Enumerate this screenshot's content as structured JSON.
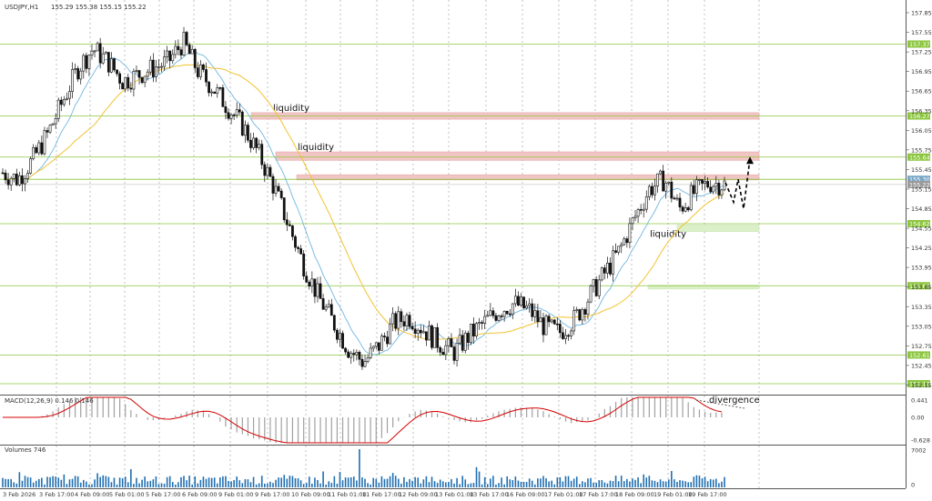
{
  "header": {
    "symbol": "USDJPY,H1",
    "ohlc": "155.29 155.38 155.15 155.22"
  },
  "chart_data": {
    "type": "candlestick",
    "price_ticks": [
      "157.85",
      "157.55",
      "157.25",
      "156.95",
      "156.65",
      "156.35",
      "156.05",
      "155.75",
      "155.45",
      "155.15",
      "154.85",
      "154.55",
      "154.25",
      "153.95",
      "153.65",
      "153.35",
      "153.05",
      "152.75",
      "152.45",
      "152.15"
    ],
    "levels": [
      {
        "label": "157.37",
        "price": 157.37
      },
      {
        "label": "156.27",
        "price": 156.27
      },
      {
        "label": "155.64",
        "price": 155.64
      },
      {
        "label": "155.30",
        "price": 155.3
      },
      {
        "label": "155.22",
        "price": 155.22
      },
      {
        "label": "154.62",
        "price": 154.62
      },
      {
        "label": "153.67",
        "price": 153.67
      },
      {
        "label": "152.61",
        "price": 152.61
      },
      {
        "label": "152.17",
        "price": 152.17
      }
    ],
    "zones": [
      {
        "label": "liquidity",
        "top": 156.32,
        "bottom": 156.22,
        "kind": "resistance"
      },
      {
        "label": "liquidity",
        "top": 155.72,
        "bottom": 155.59,
        "kind": "resistance"
      },
      {
        "label": "",
        "top": 155.37,
        "bottom": 155.29,
        "kind": "resistance"
      },
      {
        "label": "liquidity",
        "top": 154.6,
        "bottom": 154.5,
        "kind": "support"
      },
      {
        "label": "",
        "top": 153.68,
        "bottom": 153.62,
        "kind": "support"
      }
    ],
    "x_labels": [
      "3 Feb 2026",
      "3 Feb 17:00",
      "4 Feb 09:00",
      "5 Feb 01:00",
      "5 Feb 17:00",
      "6 Feb 09:00",
      "9 Feb 01:00",
      "9 Feb 17:00",
      "10 Feb 09:00",
      "11 Feb 01:00",
      "11 Feb 17:00",
      "12 Feb 09:00",
      "13 Feb 01:00",
      "13 Feb 17:00",
      "16 Feb 09:00",
      "17 Feb 01:00",
      "17 Feb 17:00",
      "18 Feb 09:00",
      "19 Feb 01:00",
      "19 Feb 17:00"
    ],
    "price_path": [
      155.4,
      155.3,
      155.6,
      156.0,
      156.5,
      157.0,
      157.3,
      157.1,
      156.8,
      156.9,
      157.0,
      157.1,
      157.4,
      156.95,
      156.7,
      156.4,
      156.1,
      155.7,
      155.2,
      154.6,
      154.0,
      153.5,
      153.1,
      152.7,
      152.5,
      152.75,
      153.1,
      153.2,
      153.0,
      152.8,
      152.65,
      152.9,
      153.1,
      153.3,
      153.4,
      153.3,
      153.05,
      152.95,
      153.15,
      153.5,
      153.85,
      154.2,
      154.7,
      155.15,
      155.3,
      154.85,
      155.1,
      155.25,
      155.22
    ],
    "macd": {
      "label": "MACD(12,26,9) 0.146 0.146",
      "ticks": [
        "0.441",
        "0.00",
        "-0.628"
      ],
      "annotation": "divergence"
    },
    "volumes": {
      "label": "Volumes 746",
      "ticks": [
        "7002",
        "0"
      ]
    }
  }
}
